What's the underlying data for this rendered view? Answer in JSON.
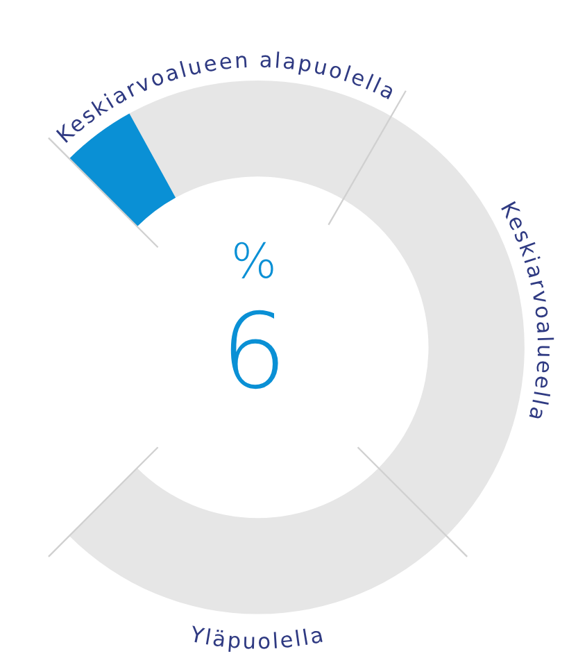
{
  "chart_data": {
    "type": "other",
    "annotations": [
      "Keskiarvoalueen alapuolella",
      "Keskiarvoalueella",
      "Yläpuolella",
      "%"
    ],
    "values": [
      6
    ],
    "colors": [
      "#0a90d5"
    ],
    "data_labels": true
  }
}
